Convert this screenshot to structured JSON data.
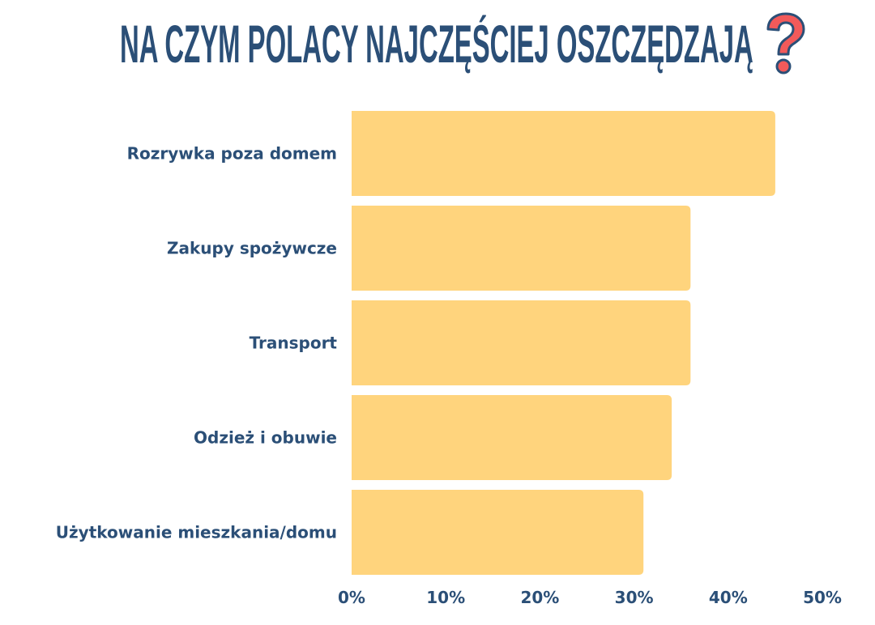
{
  "chart_data": {
    "type": "bar",
    "orientation": "horizontal",
    "title": "NA CZYM POLACY NAJCZĘŚCIEJ OSZCZĘDZAJĄ",
    "title_icon": "question-mark-icon",
    "categories": [
      "Rozrywka poza domem",
      "Zakupy spożywcze",
      "Transport",
      "Odzież i obuwie",
      "Użytkowanie mieszkania/domu"
    ],
    "values": [
      45,
      36,
      36,
      34,
      31
    ],
    "unit": "%",
    "xlim": [
      0,
      50
    ],
    "xticks": [
      "0%",
      "10%",
      "20%",
      "30%",
      "40%",
      "50%"
    ],
    "grid": false,
    "legend": "none",
    "colors": {
      "bar": "#FFD47D",
      "text": "#2B4F77",
      "icon": "#F25A5A"
    }
  }
}
